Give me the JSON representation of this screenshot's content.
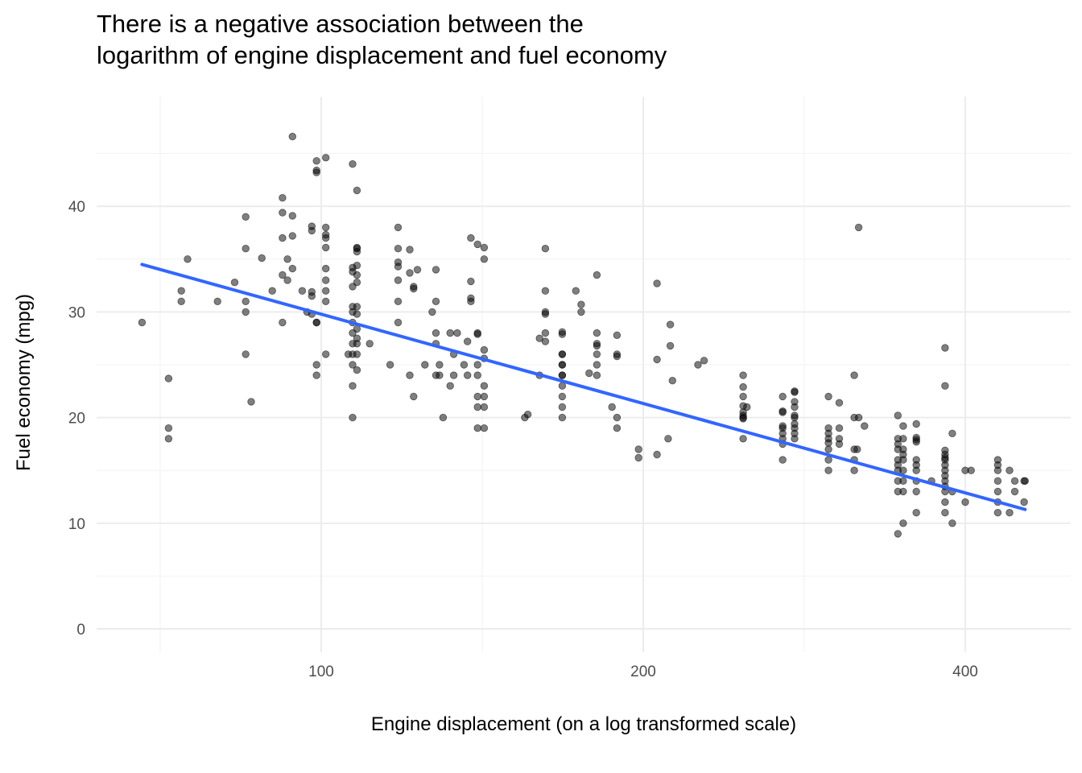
{
  "chart_data": {
    "type": "scatter",
    "title_lines": [
      "There is a negative association between the",
      "logarithm of engine displacement and fuel economy"
    ],
    "xlabel": "Engine displacement (on a log transformed scale)",
    "ylabel": "Fuel economy (mpg)",
    "x_scale": "log",
    "x_ticks": [
      100,
      200,
      400
    ],
    "x_tick_labels": [
      "100",
      "200",
      "400"
    ],
    "y_ticks": [
      0,
      10,
      20,
      30,
      40
    ],
    "y_tick_labels": [
      "0",
      "10",
      "20",
      "30",
      "40"
    ],
    "ylim": [
      -2.0,
      49.0
    ],
    "grid": true,
    "point_color": "#000000",
    "trend_color": "#3366ff",
    "trend_line": {
      "x": [
        68,
        455
      ],
      "y": [
        34.5,
        11.3
      ]
    },
    "points": [
      [
        68,
        29
      ],
      [
        72,
        23.7
      ],
      [
        72,
        19
      ],
      [
        72,
        18
      ],
      [
        74,
        32
      ],
      [
        74,
        31
      ],
      [
        75,
        35
      ],
      [
        80,
        31
      ],
      [
        83,
        32.8
      ],
      [
        85,
        39
      ],
      [
        85,
        36
      ],
      [
        85,
        31
      ],
      [
        85,
        30
      ],
      [
        85,
        26
      ],
      [
        86,
        21.5
      ],
      [
        88,
        35.1
      ],
      [
        90,
        32
      ],
      [
        92,
        29
      ],
      [
        92,
        33.5
      ],
      [
        92,
        37
      ],
      [
        92,
        39.4
      ],
      [
        92,
        40.8
      ],
      [
        93,
        35
      ],
      [
        93,
        33
      ],
      [
        94,
        34.1
      ],
      [
        94,
        37.2
      ],
      [
        94,
        46.6
      ],
      [
        94,
        39.1
      ],
      [
        96,
        32
      ],
      [
        97,
        30
      ],
      [
        98,
        37.7
      ],
      [
        98,
        38.1
      ],
      [
        98,
        31.9
      ],
      [
        98,
        31.5
      ],
      [
        98,
        29.8
      ],
      [
        99,
        44.3
      ],
      [
        99,
        43.2
      ],
      [
        99,
        43.4
      ],
      [
        99,
        29
      ],
      [
        99,
        29
      ],
      [
        99,
        25
      ],
      [
        99,
        24
      ],
      [
        101,
        44.6
      ],
      [
        101,
        38
      ],
      [
        101,
        37.3
      ],
      [
        101,
        36.1
      ],
      [
        101,
        37
      ],
      [
        101,
        34.1
      ],
      [
        101,
        33
      ],
      [
        101,
        32
      ],
      [
        101,
        31
      ],
      [
        101,
        26
      ],
      [
        106,
        26
      ],
      [
        107,
        44
      ],
      [
        107,
        34.2
      ],
      [
        107,
        33.8
      ],
      [
        107,
        32.4
      ],
      [
        107,
        30.5
      ],
      [
        107,
        30
      ],
      [
        107,
        29
      ],
      [
        107,
        28
      ],
      [
        107,
        27
      ],
      [
        107,
        26
      ],
      [
        107,
        23
      ],
      [
        107,
        20
      ],
      [
        107,
        25
      ],
      [
        108,
        36.1
      ],
      [
        108,
        35.7
      ],
      [
        108,
        32.8
      ],
      [
        108,
        30.5
      ],
      [
        108,
        29.8
      ],
      [
        108,
        28.4
      ],
      [
        108,
        27.5
      ],
      [
        108,
        26
      ],
      [
        108,
        24.5
      ],
      [
        108,
        41.5
      ],
      [
        108,
        36
      ],
      [
        108,
        34.4
      ],
      [
        108,
        33.5
      ],
      [
        108,
        27
      ],
      [
        111,
        27
      ],
      [
        116,
        25
      ],
      [
        118,
        38
      ],
      [
        118,
        36
      ],
      [
        118,
        34.7
      ],
      [
        118,
        34.3
      ],
      [
        118,
        33
      ],
      [
        118,
        31
      ],
      [
        118,
        29
      ],
      [
        121,
        24
      ],
      [
        121,
        35.9
      ],
      [
        121,
        33.7
      ],
      [
        122,
        22
      ],
      [
        122,
        32.2
      ],
      [
        122,
        32.4
      ],
      [
        123,
        34
      ],
      [
        125,
        25
      ],
      [
        127,
        30
      ],
      [
        128,
        31
      ],
      [
        128,
        27
      ],
      [
        128,
        24
      ],
      [
        128,
        28
      ],
      [
        128,
        34
      ],
      [
        129,
        24
      ],
      [
        129,
        25
      ],
      [
        130,
        20
      ],
      [
        132,
        28
      ],
      [
        132,
        23
      ],
      [
        133,
        24
      ],
      [
        133,
        26
      ],
      [
        134,
        28
      ],
      [
        136,
        25
      ],
      [
        137,
        24
      ],
      [
        137,
        27.2
      ],
      [
        138,
        31
      ],
      [
        138,
        32.9
      ],
      [
        138,
        31.3
      ],
      [
        138,
        37
      ],
      [
        140,
        22
      ],
      [
        140,
        25
      ],
      [
        140,
        21
      ],
      [
        140,
        19
      ],
      [
        140,
        24
      ],
      [
        140,
        27.9
      ],
      [
        140,
        28
      ],
      [
        140,
        36.4
      ],
      [
        142,
        36.1
      ],
      [
        142,
        35
      ],
      [
        142,
        26.4
      ],
      [
        142,
        25.6
      ],
      [
        142,
        23
      ],
      [
        142,
        22
      ],
      [
        142,
        21
      ],
      [
        142,
        19
      ],
      [
        155,
        20
      ],
      [
        156,
        20.3
      ],
      [
        160,
        24
      ],
      [
        160,
        27.5
      ],
      [
        162,
        29.8
      ],
      [
        162,
        30
      ],
      [
        162,
        36
      ],
      [
        162,
        32
      ],
      [
        162,
        28
      ],
      [
        162,
        27.2
      ],
      [
        168,
        25
      ],
      [
        168,
        22
      ],
      [
        168,
        21
      ],
      [
        168,
        20
      ],
      [
        168,
        23
      ],
      [
        168,
        24
      ],
      [
        168,
        27.9
      ],
      [
        168,
        26
      ],
      [
        168,
        28.1
      ],
      [
        168,
        26
      ],
      [
        168,
        25
      ],
      [
        168,
        24
      ],
      [
        173,
        32
      ],
      [
        175,
        30.7
      ],
      [
        175,
        30
      ],
      [
        178,
        24.2
      ],
      [
        181,
        33.5
      ],
      [
        181,
        28
      ],
      [
        181,
        26.8
      ],
      [
        181,
        27
      ],
      [
        181,
        26
      ],
      [
        181,
        25
      ],
      [
        181,
        24
      ],
      [
        187,
        21
      ],
      [
        189,
        20
      ],
      [
        189,
        19
      ],
      [
        189,
        25.8
      ],
      [
        189,
        27.8
      ],
      [
        189,
        26
      ],
      [
        198,
        17
      ],
      [
        198,
        16.2
      ],
      [
        206,
        32.7
      ],
      [
        206,
        25.5
      ],
      [
        206,
        16.5
      ],
      [
        211,
        18
      ],
      [
        212,
        28.8
      ],
      [
        212,
        26.8
      ],
      [
        213,
        23.5
      ],
      [
        225,
        25
      ],
      [
        228,
        25.4
      ],
      [
        248,
        24
      ],
      [
        248,
        22.9
      ],
      [
        248,
        22
      ],
      [
        248,
        21.1
      ],
      [
        248,
        20.5
      ],
      [
        248,
        20.2
      ],
      [
        248,
        20
      ],
      [
        248,
        19.9
      ],
      [
        248,
        18
      ],
      [
        250,
        21
      ],
      [
        270,
        22
      ],
      [
        270,
        20.5
      ],
      [
        270,
        20.6
      ],
      [
        270,
        19.2
      ],
      [
        270,
        19
      ],
      [
        270,
        18.5
      ],
      [
        270,
        18
      ],
      [
        270,
        17.5
      ],
      [
        270,
        16
      ],
      [
        277,
        21.5
      ],
      [
        277,
        22.4
      ],
      [
        277,
        22.5
      ],
      [
        277,
        21
      ],
      [
        277,
        20
      ],
      [
        277,
        19.4
      ],
      [
        277,
        19
      ],
      [
        277,
        18.5
      ],
      [
        277,
        18
      ],
      [
        277,
        20.2
      ],
      [
        298,
        22
      ],
      [
        298,
        19
      ],
      [
        298,
        18.5
      ],
      [
        298,
        18
      ],
      [
        298,
        17.6
      ],
      [
        298,
        17
      ],
      [
        298,
        16
      ],
      [
        298,
        15
      ],
      [
        305,
        21.4
      ],
      [
        305,
        19
      ],
      [
        305,
        18
      ],
      [
        305,
        17.5
      ],
      [
        315,
        20
      ],
      [
        315,
        17
      ],
      [
        315,
        16
      ],
      [
        315,
        15
      ],
      [
        315,
        24
      ],
      [
        317,
        17
      ],
      [
        318,
        20
      ],
      [
        318,
        38
      ],
      [
        322,
        19.2
      ],
      [
        346,
        20.2
      ],
      [
        346,
        18
      ],
      [
        346,
        17.5
      ],
      [
        346,
        17
      ],
      [
        346,
        16
      ],
      [
        346,
        15.5
      ],
      [
        346,
        15
      ],
      [
        346,
        14
      ],
      [
        346,
        13
      ],
      [
        346,
        9
      ],
      [
        350,
        17
      ],
      [
        350,
        18
      ],
      [
        350,
        16.5
      ],
      [
        350,
        16
      ],
      [
        350,
        15
      ],
      [
        350,
        14
      ],
      [
        350,
        13
      ],
      [
        350,
        19.2
      ],
      [
        350,
        10
      ],
      [
        360,
        19.4
      ],
      [
        360,
        18.1
      ],
      [
        360,
        17.9
      ],
      [
        360,
        16
      ],
      [
        360,
        15.5
      ],
      [
        360,
        15
      ],
      [
        360,
        14
      ],
      [
        360,
        13
      ],
      [
        360,
        11
      ],
      [
        360,
        17.7
      ],
      [
        372,
        14
      ],
      [
        383,
        26.6
      ],
      [
        383,
        23
      ],
      [
        383,
        16.9
      ],
      [
        383,
        16.5
      ],
      [
        383,
        16.2
      ],
      [
        383,
        16
      ],
      [
        383,
        15.5
      ],
      [
        383,
        15
      ],
      [
        383,
        14.5
      ],
      [
        383,
        14
      ],
      [
        383,
        13.5
      ],
      [
        383,
        13
      ],
      [
        383,
        12
      ],
      [
        383,
        11
      ],
      [
        389,
        13
      ],
      [
        389,
        18.5
      ],
      [
        389,
        10
      ],
      [
        400,
        15
      ],
      [
        400,
        12
      ],
      [
        405,
        15
      ],
      [
        429,
        16
      ],
      [
        429,
        15.5
      ],
      [
        429,
        15
      ],
      [
        429,
        14
      ],
      [
        429,
        13
      ],
      [
        429,
        12
      ],
      [
        429,
        11
      ],
      [
        440,
        15
      ],
      [
        440,
        11
      ],
      [
        445,
        13
      ],
      [
        445,
        14
      ],
      [
        454,
        14
      ],
      [
        454,
        12
      ],
      [
        455,
        14
      ]
    ]
  }
}
